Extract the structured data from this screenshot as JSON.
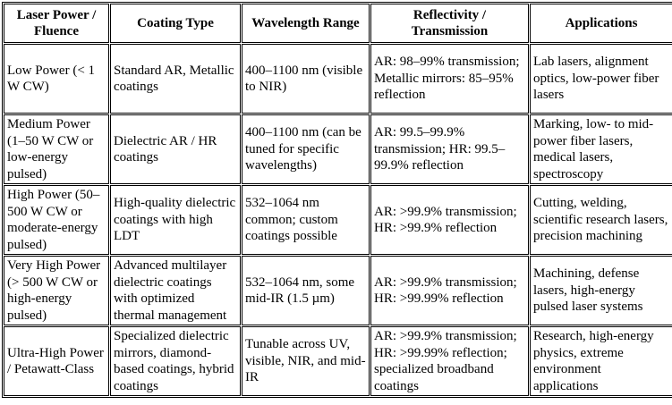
{
  "table": {
    "header": [
      "Laser Power / Fluence",
      "Coating Type",
      "Wavelength Range",
      "Reflectivity / Transmission",
      "Applications"
    ],
    "rows": [
      [
        "Low Power (< 1 W CW)",
        "Standard AR, Metallic coatings",
        "400–1100 nm (visible to NIR)",
        "AR: 98–99% transmission; Metallic mirrors: 85–95% reflection",
        "Lab lasers, alignment optics, low-power fiber lasers"
      ],
      [
        "Medium Power (1–50 W CW or low-energy pulsed)",
        "Dielectric AR / HR coatings",
        "400–1100 nm (can be tuned for specific wavelengths)",
        "AR: 99.5–99.9% transmission; HR: 99.5–99.9% reflection",
        "Marking, low- to mid-power fiber lasers, medical lasers, spectroscopy"
      ],
      [
        "High Power (50–500 W CW or moderate-energy pulsed)",
        "High-quality dielectric coatings with high LDT",
        "532–1064 nm common; custom coatings possible",
        "AR: >99.9% transmission; HR: >99.9% reflection",
        "Cutting, welding, scientific research lasers, precision machining"
      ],
      [
        "Very High Power (> 500 W CW or high-energy pulsed)",
        "Advanced multilayer dielectric coatings with optimized thermal management",
        "532–1064 nm, some mid-IR (1.5 µm)",
        "AR: >99.9% transmission; HR: >99.99% reflection",
        "Machining, defense lasers, high-energy pulsed laser systems"
      ],
      [
        "Ultra-High Power / Petawatt-Class",
        "Specialized dielectric mirrors, diamond-based coatings, hybrid coatings",
        "Tunable across UV, visible, NIR, and mid-IR",
        "AR: >99.9% transmission; HR: >99.99% reflection; specialized broadband coatings",
        "Research, high-energy physics, extreme environment applications"
      ]
    ]
  }
}
